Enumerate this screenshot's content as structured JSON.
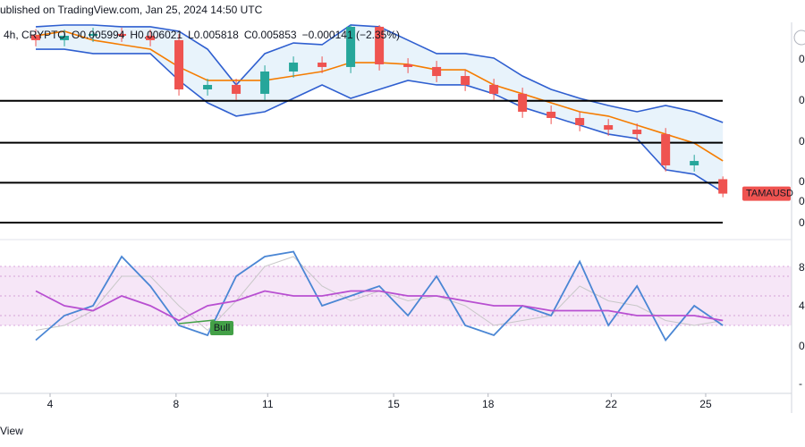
{
  "header": {
    "published": "ublished on TradingView.com, Jan 25, 2024 14:50 UTC",
    "interval": "4h, CRYPTO",
    "ohlc": [
      "O0.005994",
      "H0.006021",
      "L0.005818",
      "C0.005853",
      "−0.000141 (−2.35%)"
    ]
  },
  "ui": {
    "price_axis_labels": [
      "0",
      "0",
      "0",
      "0",
      "0",
      "0"
    ],
    "osc_axis_labels": [
      "8",
      "4",
      "0",
      "-"
    ],
    "bull": "Bull",
    "footer": "View"
  },
  "chart_data": [
    {
      "type": "candlestick",
      "symbol": "TAMAUSD",
      "symbol_color": "#ef5350",
      "x": [
        0,
        1,
        2,
        3,
        4,
        5,
        6,
        7,
        8,
        9,
        10,
        11,
        12,
        13,
        14,
        15,
        16,
        17,
        18,
        19,
        20,
        21,
        22,
        23,
        24
      ],
      "open": [
        0.0074,
        0.007352,
        0.007395,
        0.007413,
        0.007395,
        0.007352,
        0.006871,
        0.006915,
        0.006828,
        0.007046,
        0.007133,
        0.00709,
        0.007483,
        0.007116,
        0.00709,
        0.007002,
        0.006915,
        0.006828,
        0.006653,
        0.006592,
        0.006522,
        0.006478,
        0.006434,
        0.006129,
        0.005994
      ],
      "high": [
        0.00746,
        0.007455,
        0.007473,
        0.007473,
        0.007455,
        0.007412,
        0.006975,
        0.006975,
        0.007106,
        0.007193,
        0.007193,
        0.0075,
        0.0075,
        0.007176,
        0.00715,
        0.007062,
        0.006975,
        0.006888,
        0.006713,
        0.006652,
        0.006582,
        0.006538,
        0.006494,
        0.006232,
        0.006021
      ],
      "low": [
        0.007292,
        0.007292,
        0.007335,
        0.007335,
        0.007292,
        0.006811,
        0.006811,
        0.006768,
        0.006768,
        0.006986,
        0.00703,
        0.00703,
        0.007056,
        0.00703,
        0.006942,
        0.006855,
        0.006768,
        0.006593,
        0.006532,
        0.006462,
        0.006418,
        0.006374,
        0.006069,
        0.006069,
        0.005818
      ],
      "close": [
        0.007352,
        0.007395,
        0.007413,
        0.007395,
        0.007352,
        0.006871,
        0.006915,
        0.006828,
        0.007046,
        0.007133,
        0.00709,
        0.007483,
        0.007116,
        0.00709,
        0.007002,
        0.006915,
        0.006828,
        0.006653,
        0.006592,
        0.006522,
        0.006478,
        0.006434,
        0.006129,
        0.006172,
        0.005853
      ],
      "up_color": "#26a69a",
      "down_color": "#ef5350",
      "bands": {
        "upper": [
          0.007483,
          0.0075,
          0.0075,
          0.007483,
          0.007483,
          0.007439,
          0.007264,
          0.006915,
          0.007221,
          0.007325,
          0.007308,
          0.0075,
          0.007483,
          0.007352,
          0.007221,
          0.007221,
          0.007177,
          0.007002,
          0.006871,
          0.006784,
          0.006714,
          0.006653,
          0.006714,
          0.006653,
          0.006548
        ],
        "basis": [
          0.007395,
          0.007439,
          0.007352,
          0.007308,
          0.007264,
          0.00709,
          0.006959,
          0.006959,
          0.006959,
          0.007002,
          0.007046,
          0.007133,
          0.007133,
          0.007116,
          0.007063,
          0.007063,
          0.006915,
          0.006828,
          0.00674,
          0.006653,
          0.00661,
          0.006522,
          0.006434,
          0.006347,
          0.006173
        ],
        "lower": [
          0.007264,
          0.007264,
          0.007221,
          0.007221,
          0.007221,
          0.006959,
          0.00674,
          0.00661,
          0.006653,
          0.006784,
          0.006915,
          0.006784,
          0.006871,
          0.006959,
          0.006915,
          0.006915,
          0.006828,
          0.006697,
          0.00661,
          0.006522,
          0.006434,
          0.006391,
          0.006086,
          0.006042,
          0.005867
        ],
        "band_color": "#2f5fd0",
        "basis_color": "#f57c00",
        "fill": "#e8f3fb"
      },
      "levels": [
        0.00676,
        0.00635,
        0.00596,
        0.00557
      ],
      "level_color": "#000000",
      "ylim": [
        0.0055,
        0.0075
      ],
      "xlim": [
        -1.25,
        26.4
      ],
      "xticks": [
        {
          "value": 0.5,
          "label": "4"
        },
        {
          "value": 4.9,
          "label": "8"
        },
        {
          "value": 8.1,
          "label": "11"
        },
        {
          "value": 12.5,
          "label": "15"
        },
        {
          "value": 15.8,
          "label": "18"
        },
        {
          "value": 20.1,
          "label": "22"
        },
        {
          "value": 23.4,
          "label": "25"
        }
      ]
    },
    {
      "type": "line",
      "x": [
        0,
        1,
        2,
        3,
        4,
        5,
        6,
        7,
        8,
        9,
        10,
        11,
        12,
        13,
        14,
        15,
        16,
        17,
        18,
        19,
        20,
        21,
        22,
        23,
        24
      ],
      "series": [
        {
          "color": "#c8c8c8",
          "values": [
            15,
            20,
            35,
            70,
            70,
            40,
            15,
            45,
            80,
            90,
            60,
            45,
            55,
            45,
            50,
            40,
            20,
            25,
            30,
            60,
            45,
            40,
            25,
            20,
            25
          ]
        },
        {
          "color": "#4a86d4",
          "values": [
            5,
            30,
            40,
            90,
            60,
            20,
            10,
            70,
            90,
            95,
            40,
            50,
            60,
            30,
            70,
            20,
            10,
            40,
            30,
            85,
            20,
            60,
            5,
            40,
            20
          ]
        },
        {
          "color": "#b84fd1",
          "values": [
            55,
            40,
            35,
            50,
            40,
            25,
            40,
            45,
            55,
            50,
            50,
            55,
            55,
            50,
            50,
            45,
            40,
            40,
            35,
            35,
            35,
            30,
            30,
            30,
            25
          ]
        }
      ],
      "band": [
        20,
        80
      ],
      "band_color": "#f6e6f7",
      "guides": [
        30,
        50,
        70
      ],
      "ylim": [
        -40,
        100
      ],
      "xlim": [
        -1.25,
        26.4
      ]
    }
  ]
}
